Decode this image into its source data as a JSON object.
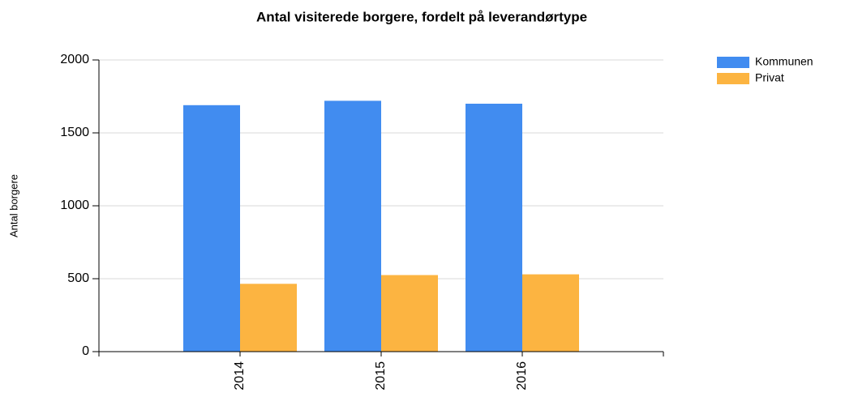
{
  "chart_data": {
    "type": "bar",
    "title": "Antal visiterede borgere, fordelt på leverandørtype",
    "y_label": "Antal borgere",
    "categories": [
      "2014",
      "2015",
      "2016"
    ],
    "series": [
      {
        "name": "Kommunen",
        "color": "#418cf0",
        "values": [
          1690,
          1720,
          1700
        ]
      },
      {
        "name": "Privat",
        "color": "#fcb441",
        "values": [
          465,
          525,
          530
        ]
      }
    ],
    "ylim": [
      0,
      2000
    ],
    "yticks": [
      0,
      500,
      1000,
      1500,
      2000
    ],
    "grid": true,
    "legend": "top-right"
  }
}
